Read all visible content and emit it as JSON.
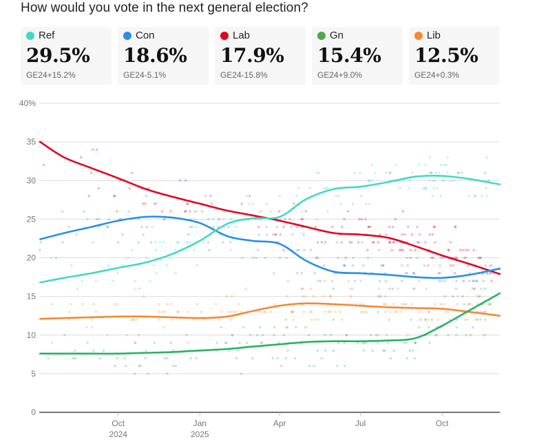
{
  "title": "How would you vote in the next general election?",
  "legend": [
    {
      "name": "Ref",
      "value": "29.5%",
      "change": "GE24+15.2%",
      "color": "#40d9c7"
    },
    {
      "name": "Con",
      "value": "18.6%",
      "change": "GE24-5.1%",
      "color": "#2b8de8"
    },
    {
      "name": "Lab",
      "value": "17.9%",
      "change": "GE24-15.8%",
      "color": "#e5001c"
    },
    {
      "name": "Gn",
      "value": "15.4%",
      "change": "GE24+9.0%",
      "color": "#4fa84f"
    },
    {
      "name": "Lib",
      "value": "12.5%",
      "change": "GE24+0.3%",
      "color": "#f7882f"
    }
  ],
  "chart_data": {
    "type": "line",
    "title": "How would you vote in the next general election?",
    "xlabel": "",
    "ylabel": "",
    "ylim": [
      0,
      40
    ],
    "yticks": [
      0,
      5,
      10,
      15,
      20,
      25,
      30,
      35,
      40
    ],
    "ytick_labels": [
      "0",
      "5",
      "10",
      "15",
      "20",
      "25",
      "30",
      "35",
      "40%"
    ],
    "xlim": [
      "2024-07-04",
      "2025-12-05"
    ],
    "xticks": [
      {
        "date": "2024-10-01",
        "label": "Oct",
        "sublabel": "2024"
      },
      {
        "date": "2025-01-01",
        "label": "Jan",
        "sublabel": "2025"
      },
      {
        "date": "2025-04-01",
        "label": "Apr",
        "sublabel": ""
      },
      {
        "date": "2025-07-01",
        "label": "Jul",
        "sublabel": ""
      },
      {
        "date": "2025-10-01",
        "label": "Oct",
        "sublabel": ""
      }
    ],
    "grid": true,
    "legend_position": "top",
    "x": [
      "2024-07-05",
      "2024-08-01",
      "2024-09-01",
      "2024-10-01",
      "2024-11-01",
      "2024-12-01",
      "2025-01-01",
      "2025-02-01",
      "2025-03-01",
      "2025-04-01",
      "2025-05-01",
      "2025-06-01",
      "2025-07-01",
      "2025-08-01",
      "2025-09-01",
      "2025-10-01",
      "2025-11-01",
      "2025-12-05"
    ],
    "series": [
      {
        "name": "Lab",
        "color": "#e5001c",
        "values": [
          35.0,
          33.0,
          31.6,
          30.3,
          28.9,
          27.9,
          27.0,
          26.1,
          25.5,
          24.8,
          24.0,
          23.2,
          23.0,
          22.6,
          21.5,
          20.3,
          19.2,
          17.9
        ]
      },
      {
        "name": "Con",
        "color": "#2b8de8",
        "values": [
          22.4,
          23.2,
          24.0,
          24.8,
          25.3,
          25.2,
          24.5,
          22.8,
          22.2,
          21.8,
          19.6,
          18.2,
          18.0,
          17.8,
          17.5,
          17.4,
          17.8,
          18.6
        ]
      },
      {
        "name": "Ref",
        "color": "#40d9c7",
        "values": [
          16.8,
          17.4,
          18.0,
          18.7,
          19.4,
          20.5,
          22.2,
          24.4,
          25.1,
          25.3,
          27.6,
          28.9,
          29.2,
          29.8,
          30.5,
          30.6,
          30.2,
          29.5
        ]
      },
      {
        "name": "Lib",
        "color": "#f7882f",
        "values": [
          12.1,
          12.2,
          12.3,
          12.4,
          12.4,
          12.3,
          12.2,
          12.4,
          13.1,
          13.8,
          14.1,
          14.0,
          13.8,
          13.6,
          13.5,
          13.4,
          13.0,
          12.5
        ]
      },
      {
        "name": "Gn",
        "color": "#25b35e",
        "values": [
          7.6,
          7.6,
          7.6,
          7.6,
          7.7,
          7.8,
          8.0,
          8.2,
          8.5,
          8.8,
          9.1,
          9.2,
          9.2,
          9.3,
          9.6,
          11.2,
          13.2,
          15.4
        ]
      }
    ]
  }
}
